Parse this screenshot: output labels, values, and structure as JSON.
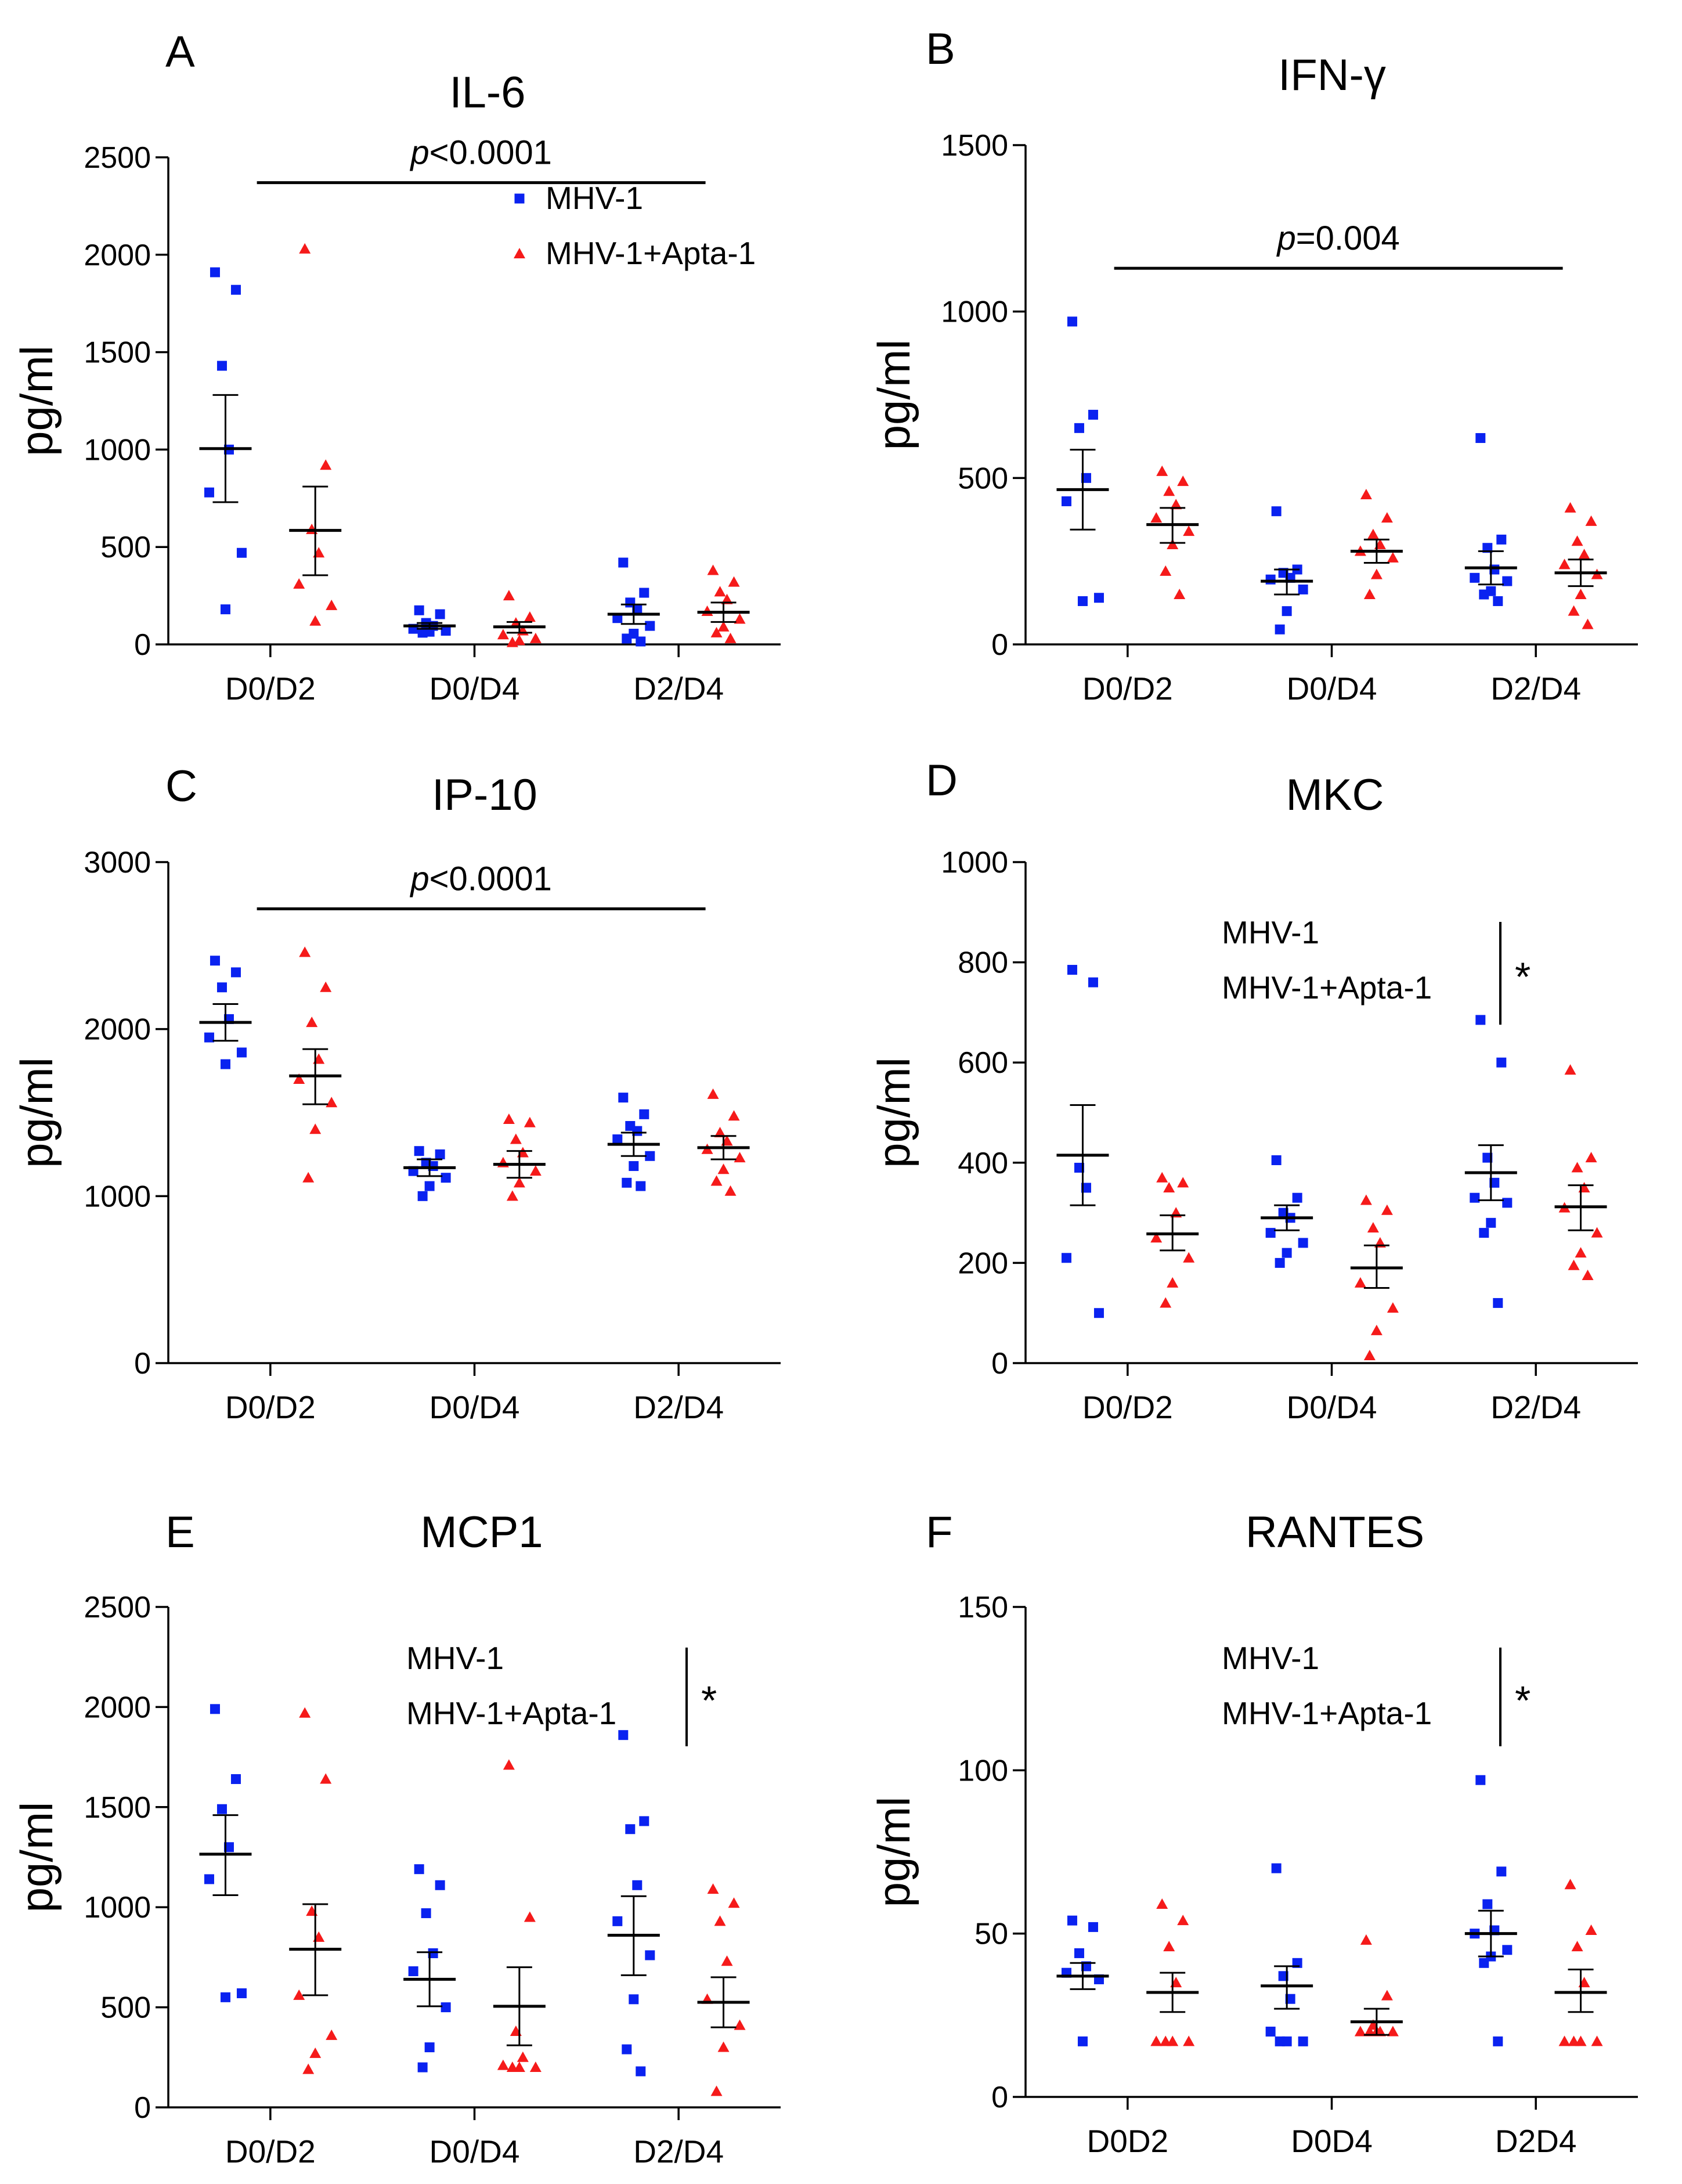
{
  "figure_domain": "Chart",
  "colors": {
    "blue": "#0a22f0",
    "red": "#f51a1a",
    "black": "#000000"
  },
  "chart_data": [
    {
      "panel": "A",
      "title": "IL-6",
      "type": "scatter",
      "ylabel": "pg/ml",
      "ylim": [
        0,
        2500
      ],
      "yticks": [
        "0",
        "500",
        "1000",
        "1500",
        "2000",
        "2500"
      ],
      "categories": [
        "D0/D2",
        "D0/D4",
        "D2/D4"
      ],
      "legend": [
        "MHV-1",
        "MHV-1+Apta-1"
      ],
      "legend_style": "markers",
      "annotation": {
        "type": "pvalue",
        "prefix": "p",
        "text": "<0.0001",
        "from": 0,
        "to": 2,
        "y": 2370
      },
      "series": [
        {
          "name": "MHV-1",
          "marker": "square",
          "color": "#0a22f0",
          "points": [
            [
              1910,
              1820,
              1430,
              1000,
              780,
              470,
              180
            ],
            [
              175,
              155,
              110,
              95,
              80,
              70,
              65,
              60
            ],
            [
              420,
              265,
              215,
              180,
              135,
              95,
              55,
              30,
              15
            ]
          ],
          "mean": [
            1005,
            95,
            155
          ],
          "sem": [
            [
              730,
              1280
            ],
            [
              80,
              110
            ],
            [
              105,
              205
            ]
          ]
        },
        {
          "name": "MHV-1+Apta-1",
          "marker": "triangle",
          "color": "#f51a1a",
          "points": [
            [
              2030,
              920,
              590,
              470,
              310,
              200,
              120
            ],
            [
              250,
              140,
              110,
              70,
              50,
              30,
              20,
              10
            ],
            [
              380,
              320,
              270,
              230,
              170,
              130,
              90,
              60,
              30
            ]
          ],
          "mean": [
            585,
            90,
            165
          ],
          "sem": [
            [
              355,
              810
            ],
            [
              60,
              115
            ],
            [
              115,
              215
            ]
          ]
        }
      ]
    },
    {
      "panel": "B",
      "title": "IFN-γ",
      "type": "scatter",
      "ylabel": "pg/ml",
      "ylim": [
        0,
        1500
      ],
      "yticks": [
        "0",
        "500",
        "1000",
        "1500"
      ],
      "categories": [
        "D0/D2",
        "D0/D4",
        "D2/D4"
      ],
      "annotation": {
        "type": "pvalue",
        "prefix": "p",
        "text": "=0.004",
        "from": 0,
        "to": 2,
        "y": 1130
      },
      "series": [
        {
          "name": "MHV-1",
          "marker": "square",
          "color": "#0a22f0",
          "points": [
            [
              970,
              690,
              650,
              500,
              430,
              140,
              130
            ],
            [
              400,
              225,
              215,
              200,
              195,
              165,
              100,
              45
            ],
            [
              620,
              315,
              290,
              225,
              200,
              190,
              160,
              150,
              130
            ]
          ],
          "mean": [
            465,
            190,
            230
          ],
          "sem": [
            [
              345,
              585
            ],
            [
              150,
              225
            ],
            [
              180,
              280
            ]
          ]
        },
        {
          "name": "MHV-1+Apta-1",
          "marker": "triangle",
          "color": "#f51a1a",
          "points": [
            [
              520,
              490,
              460,
              420,
              380,
              340,
              300,
              220,
              150
            ],
            [
              450,
              380,
              330,
              300,
              280,
              260,
              210,
              150
            ],
            [
              410,
              370,
              310,
              270,
              240,
              210,
              150,
              100,
              60
            ]
          ],
          "mean": [
            360,
            280,
            215
          ],
          "sem": [
            [
              305,
              410
            ],
            [
              245,
              315
            ],
            [
              175,
              255
            ]
          ]
        }
      ]
    },
    {
      "panel": "C",
      "title": "IP-10",
      "type": "scatter",
      "ylabel": "pg/ml",
      "ylim": [
        0,
        3000
      ],
      "yticks": [
        "0",
        "1000",
        "2000",
        "3000"
      ],
      "categories": [
        "D0/D2",
        "D0/D4",
        "D2/D4"
      ],
      "annotation": {
        "type": "pvalue",
        "prefix": "p",
        "text": "<0.0001",
        "from": 0,
        "to": 2,
        "y": 2720
      },
      "series": [
        {
          "name": "MHV-1",
          "marker": "square",
          "color": "#0a22f0",
          "points": [
            [
              2410,
              2340,
              2250,
              2060,
              1950,
              1860,
              1790
            ],
            [
              1270,
              1250,
              1200,
              1180,
              1150,
              1110,
              1060,
              1000
            ],
            [
              1590,
              1490,
              1420,
              1390,
              1340,
              1240,
              1180,
              1080,
              1060
            ]
          ],
          "mean": [
            2040,
            1170,
            1310
          ],
          "sem": [
            [
              1930,
              2150
            ],
            [
              1120,
              1220
            ],
            [
              1240,
              1380
            ]
          ]
        },
        {
          "name": "MHV-1+Apta-1",
          "marker": "triangle",
          "color": "#f51a1a",
          "points": [
            [
              2460,
              2250,
              2040,
              1820,
              1700,
              1560,
              1400,
              1110
            ],
            [
              1460,
              1440,
              1340,
              1260,
              1200,
              1150,
              1080,
              1000
            ],
            [
              1610,
              1480,
              1380,
              1330,
              1280,
              1230,
              1160,
              1090,
              1030
            ]
          ],
          "mean": [
            1720,
            1190,
            1290
          ],
          "sem": [
            [
              1550,
              1880
            ],
            [
              1110,
              1270
            ],
            [
              1220,
              1360
            ]
          ]
        }
      ]
    },
    {
      "panel": "D",
      "title": "MKC",
      "type": "scatter",
      "ylabel": "pg/ml",
      "ylim": [
        0,
        1000
      ],
      "yticks": [
        "0",
        "200",
        "400",
        "600",
        "800",
        "1000"
      ],
      "categories": [
        "D0/D2",
        "D0/D4",
        "D2/D4"
      ],
      "legend": [
        "MHV-1",
        "MHV-1+Apta-1"
      ],
      "legend_style": "text",
      "annotation": {
        "type": "bar-star",
        "text": "*"
      },
      "series": [
        {
          "name": "MHV-1",
          "marker": "square",
          "color": "#0a22f0",
          "points": [
            [
              785,
              760,
              390,
              350,
              210,
              100
            ],
            [
              405,
              330,
              300,
              290,
              260,
              240,
              220,
              200
            ],
            [
              685,
              600,
              410,
              360,
              330,
              320,
              280,
              260,
              120
            ]
          ],
          "mean": [
            415,
            290,
            380
          ],
          "sem": [
            [
              315,
              515
            ],
            [
              265,
              315
            ],
            [
              325,
              435
            ]
          ]
        },
        {
          "name": "MHV-1+Apta-1",
          "marker": "triangle",
          "color": "#f51a1a",
          "points": [
            [
              370,
              360,
              350,
              300,
              250,
              210,
              160,
              120
            ],
            [
              325,
              305,
              270,
              240,
              160,
              110,
              65,
              15
            ],
            [
              585,
              410,
              390,
              350,
              310,
              260,
              220,
              195,
              175
            ]
          ],
          "mean": [
            258,
            190,
            312
          ],
          "sem": [
            [
              225,
              295
            ],
            [
              150,
              235
            ],
            [
              265,
              355
            ]
          ]
        }
      ]
    },
    {
      "panel": "E",
      "title": "MCP1",
      "type": "scatter",
      "ylabel": "pg/ml",
      "ylim": [
        0,
        2500
      ],
      "yticks": [
        "0",
        "500",
        "1000",
        "1500",
        "2000",
        "2500"
      ],
      "categories": [
        "D0/D2",
        "D0/D4",
        "D2/D4"
      ],
      "legend": [
        "MHV-1",
        "MHV-1+Apta-1"
      ],
      "legend_style": "text",
      "annotation": {
        "type": "bar-star",
        "text": "*"
      },
      "series": [
        {
          "name": "MHV-1",
          "marker": "square",
          "color": "#0a22f0",
          "points": [
            [
              1990,
              1640,
              1490,
              1300,
              1140,
              570,
              550
            ],
            [
              1190,
              1110,
              970,
              770,
              680,
              500,
              300,
              200
            ],
            [
              1860,
              1430,
              1390,
              1110,
              930,
              760,
              540,
              290,
              180
            ]
          ],
          "mean": [
            1265,
            640,
            860
          ],
          "sem": [
            [
              1060,
              1460
            ],
            [
              505,
              775
            ],
            [
              660,
              1055
            ]
          ]
        },
        {
          "name": "MHV-1+Apta-1",
          "marker": "triangle",
          "color": "#f51a1a",
          "points": [
            [
              1970,
              1640,
              980,
              850,
              560,
              360,
              270,
              190
            ],
            [
              1710,
              950,
              380,
              250,
              210,
              200,
              200,
              200
            ],
            [
              1090,
              1020,
              930,
              730,
              540,
              410,
              300,
              80
            ]
          ],
          "mean": [
            790,
            505,
            525
          ],
          "sem": [
            [
              560,
              1015
            ],
            [
              310,
              700
            ],
            [
              400,
              650
            ]
          ]
        }
      ]
    },
    {
      "panel": "F",
      "title": "RANTES",
      "type": "scatter",
      "ylabel": "pg/ml",
      "ylim": [
        0,
        150
      ],
      "yticks": [
        "0",
        "50",
        "100",
        "150"
      ],
      "categories": [
        "D0D2",
        "D0D4",
        "D2D4"
      ],
      "legend": [
        "MHV-1",
        "MHV-1+Apta-1"
      ],
      "legend_style": "text",
      "annotation": {
        "type": "bar-star",
        "text": "*"
      },
      "series": [
        {
          "name": "MHV-1",
          "marker": "square",
          "color": "#0a22f0",
          "points": [
            [
              54,
              52,
              44,
              40,
              38,
              36,
              17
            ],
            [
              70,
              41,
              37,
              30,
              20,
              17,
              17,
              17
            ],
            [
              97,
              69,
              59,
              51,
              50,
              45,
              43,
              41,
              17
            ]
          ],
          "mean": [
            37,
            34,
            50
          ],
          "sem": [
            [
              33,
              41
            ],
            [
              27,
              40
            ],
            [
              43,
              57
            ]
          ]
        },
        {
          "name": "MHV-1+Apta-1",
          "marker": "triangle",
          "color": "#f51a1a",
          "points": [
            [
              59,
              54,
              46,
              35,
              17,
              17,
              17,
              17
            ],
            [
              48,
              31,
              22,
              20,
              20,
              20,
              20,
              20
            ],
            [
              65,
              51,
              46,
              35,
              17,
              17,
              17,
              17
            ]
          ],
          "mean": [
            32,
            23,
            32
          ],
          "sem": [
            [
              26,
              38
            ],
            [
              19,
              27
            ],
            [
              26,
              39
            ]
          ]
        }
      ]
    }
  ]
}
